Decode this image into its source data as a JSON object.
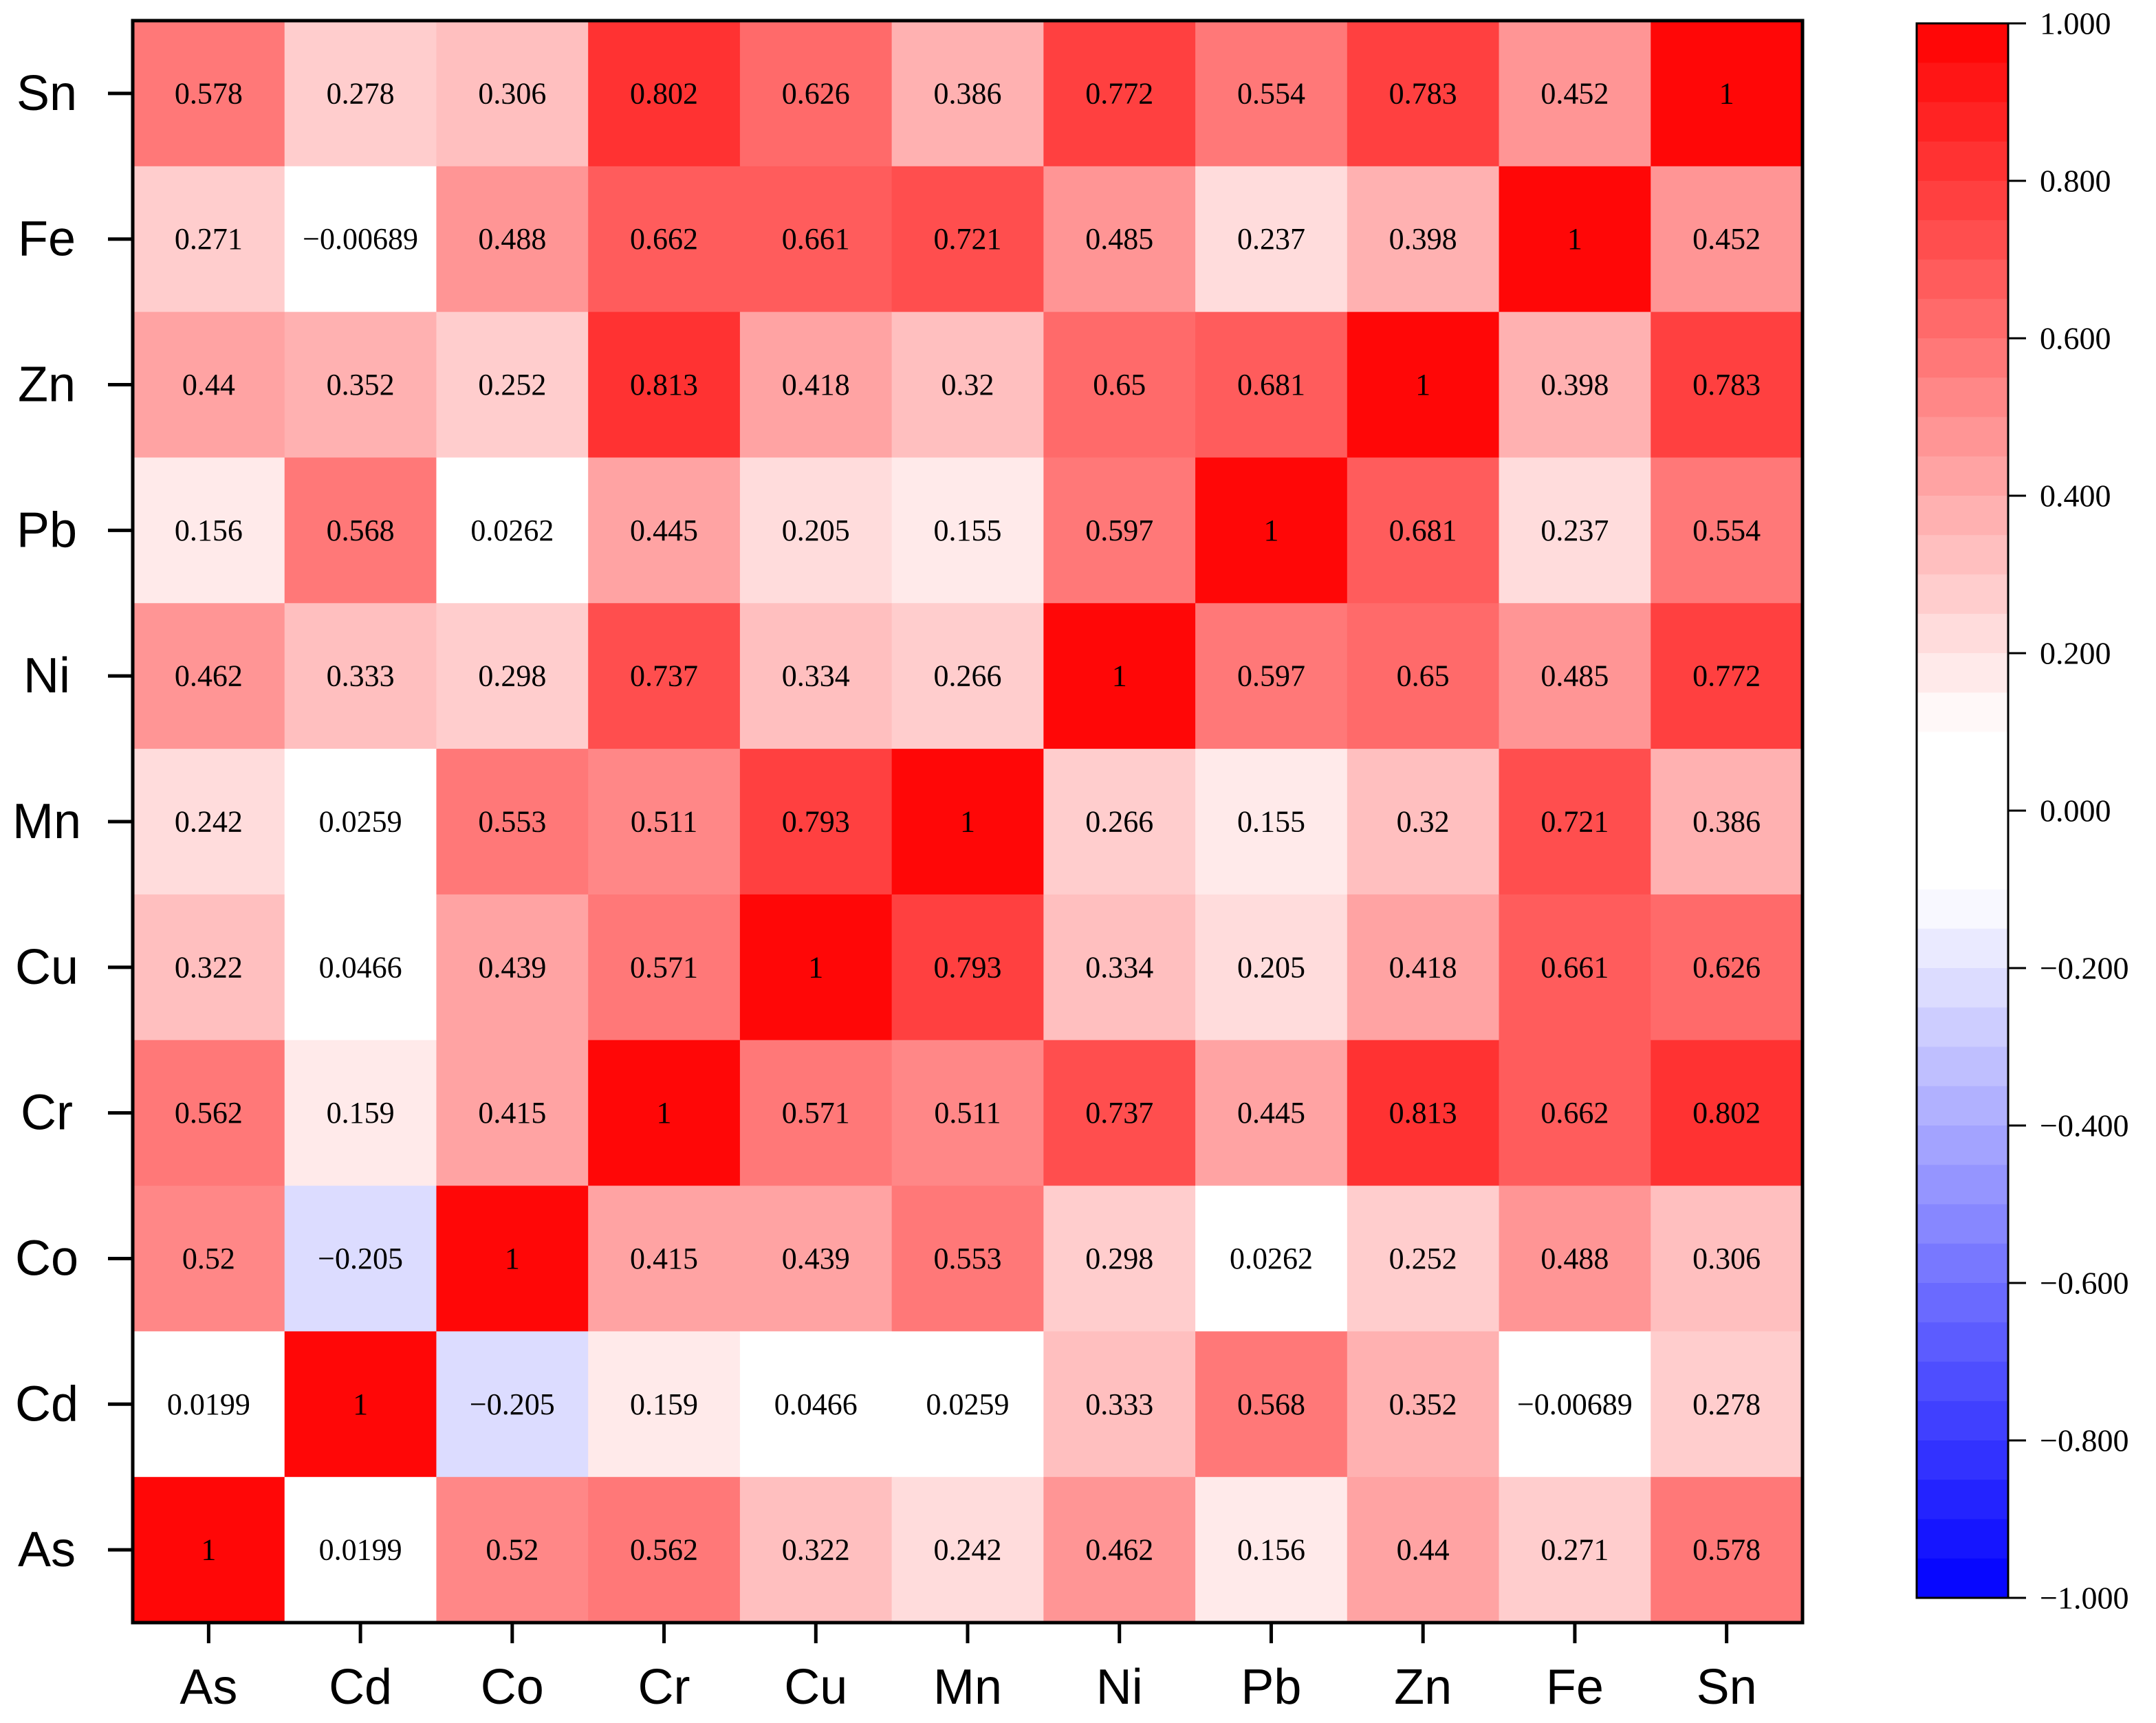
{
  "chart_data": {
    "type": "heatmap",
    "title": "",
    "xlabel": "",
    "ylabel": "",
    "x_categories": [
      "As",
      "Cd",
      "Co",
      "Cr",
      "Cu",
      "Mn",
      "Ni",
      "Pb",
      "Zn",
      "Fe",
      "Sn"
    ],
    "y_categories_top_to_bottom": [
      "Sn",
      "Fe",
      "Zn",
      "Pb",
      "Ni",
      "Mn",
      "Cu",
      "Cr",
      "Co",
      "Cd",
      "As"
    ],
    "values": [
      [
        "0.578",
        "0.278",
        "0.306",
        "0.802",
        "0.626",
        "0.386",
        "0.772",
        "0.554",
        "0.783",
        "0.452",
        "1"
      ],
      [
        "0.271",
        "−0.00689",
        "0.488",
        "0.662",
        "0.661",
        "0.721",
        "0.485",
        "0.237",
        "0.398",
        "1",
        "0.452"
      ],
      [
        "0.44",
        "0.352",
        "0.252",
        "0.813",
        "0.418",
        "0.32",
        "0.65",
        "0.681",
        "1",
        "0.398",
        "0.783"
      ],
      [
        "0.156",
        "0.568",
        "0.0262",
        "0.445",
        "0.205",
        "0.155",
        "0.597",
        "1",
        "0.681",
        "0.237",
        "0.554"
      ],
      [
        "0.462",
        "0.333",
        "0.298",
        "0.737",
        "0.334",
        "0.266",
        "1",
        "0.597",
        "0.65",
        "0.485",
        "0.772"
      ],
      [
        "0.242",
        "0.0259",
        "0.553",
        "0.511",
        "0.793",
        "1",
        "0.266",
        "0.155",
        "0.32",
        "0.721",
        "0.386"
      ],
      [
        "0.322",
        "0.0466",
        "0.439",
        "0.571",
        "1",
        "0.793",
        "0.334",
        "0.205",
        "0.418",
        "0.661",
        "0.626"
      ],
      [
        "0.562",
        "0.159",
        "0.415",
        "1",
        "0.571",
        "0.511",
        "0.737",
        "0.445",
        "0.813",
        "0.662",
        "0.802"
      ],
      [
        "0.52",
        "−0.205",
        "1",
        "0.415",
        "0.439",
        "0.553",
        "0.298",
        "0.0262",
        "0.252",
        "0.488",
        "0.306"
      ],
      [
        "0.0199",
        "1",
        "−0.205",
        "0.159",
        "0.0466",
        "0.0259",
        "0.333",
        "0.568",
        "0.352",
        "−0.00689",
        "0.278"
      ],
      [
        "1",
        "0.0199",
        "0.52",
        "0.562",
        "0.322",
        "0.242",
        "0.462",
        "0.156",
        "0.44",
        "0.271",
        "0.578"
      ]
    ],
    "colorbar": {
      "range": [
        -1,
        1
      ],
      "ticks": [
        "1.000",
        "0.800",
        "0.600",
        "0.400",
        "0.200",
        "0.000",
        "−0.200",
        "−0.400",
        "−0.600",
        "−0.800",
        "−1.000"
      ],
      "steps": 40,
      "colors": {
        "positive": "#ff0000",
        "neutral": "#ffffff",
        "negative": "#0000ff"
      }
    }
  }
}
